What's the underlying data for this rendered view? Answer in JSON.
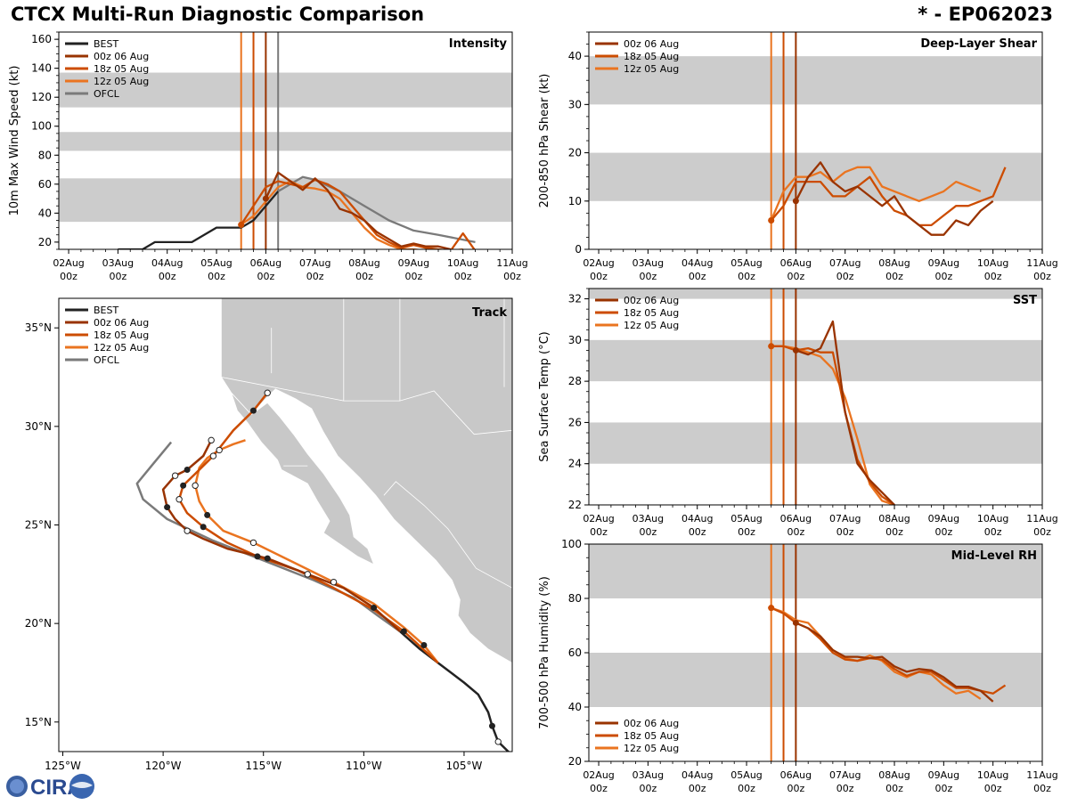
{
  "header": {
    "title": "CTCX Multi-Run Diagnostic Comparison",
    "storm_id": "* - EP062023"
  },
  "logo": {
    "text": "CIRA"
  },
  "colors": {
    "BEST": "#222222",
    "00z 06 Aug": "#993300",
    "18z 05 Aug": "#cc4c00",
    "12z 05 Aug": "#ea7420",
    "OFCL": "#7a7a7a",
    "band": "#cccccc",
    "land": "#c8c8c8"
  },
  "time_ticks": [
    "02Aug",
    "03Aug",
    "04Aug",
    "05Aug",
    "06Aug",
    "07Aug",
    "08Aug",
    "09Aug",
    "10Aug",
    "11Aug"
  ],
  "time_tick_sub": "00z",
  "chart_data": [
    {
      "id": "intensity",
      "type": "line",
      "title": "Intensity",
      "ylabel": "10m Max Wind Speed (kt)",
      "ylim": [
        15,
        165
      ],
      "xlim": [
        1.8,
        11.0
      ],
      "yticks": [
        20,
        40,
        60,
        80,
        100,
        120,
        140,
        160
      ],
      "bands": [
        [
          34,
          64
        ],
        [
          83,
          96
        ],
        [
          113,
          137
        ]
      ],
      "legend": [
        "BEST",
        "00z 06 Aug",
        "18z 05 Aug",
        "12z 05 Aug",
        "OFCL"
      ],
      "vlines": [
        {
          "series": "12z 05 Aug",
          "x": 5.5
        },
        {
          "series": "18z 05 Aug",
          "x": 5.75
        },
        {
          "series": "00z 06 Aug",
          "x": 6.0
        },
        {
          "series": "OFCL",
          "x": 6.25
        }
      ],
      "series": [
        {
          "name": "BEST",
          "x": [
            3.0,
            3.5,
            3.75,
            4.5,
            5.0,
            5.5,
            5.75,
            6.0,
            6.25
          ],
          "y": [
            15,
            15,
            20,
            20,
            30,
            30,
            35,
            45,
            55
          ]
        },
        {
          "name": "OFCL",
          "x": [
            6.25,
            6.5,
            6.75,
            7.0,
            7.5,
            8.0,
            8.5,
            9.0,
            9.5,
            10.25
          ],
          "y": [
            55,
            60,
            65,
            63,
            55,
            45,
            35,
            28,
            25,
            20
          ]
        },
        {
          "name": "12z 05 Aug",
          "x": [
            5.5,
            5.75,
            6.0,
            6.25,
            6.5,
            6.75,
            7.0,
            7.25,
            7.5,
            7.75,
            8.0,
            8.25,
            8.5,
            8.75,
            9.0,
            9.25,
            9.5,
            9.75,
            10.0
          ],
          "y": [
            32,
            38,
            48,
            58,
            62,
            58,
            57,
            55,
            50,
            40,
            30,
            22,
            18,
            15,
            15,
            14,
            14,
            14,
            15
          ]
        },
        {
          "name": "18z 05 Aug",
          "x": [
            5.5,
            5.75,
            6.0,
            6.25,
            6.5,
            6.75,
            7.0,
            7.25,
            7.5,
            7.75,
            8.0,
            8.25,
            8.5,
            8.75,
            9.0,
            9.25,
            9.5,
            9.75,
            10.0,
            10.25
          ],
          "y": [
            32,
            45,
            58,
            62,
            60,
            58,
            63,
            60,
            55,
            45,
            35,
            25,
            20,
            16,
            18,
            16,
            15,
            14,
            26,
            14
          ]
        },
        {
          "name": "00z 06 Aug",
          "x": [
            6.0,
            6.25,
            6.5,
            6.75,
            7.0,
            7.25,
            7.5,
            7.75,
            8.0,
            8.25,
            8.5,
            8.75,
            9.0,
            9.25,
            9.5,
            9.75
          ],
          "y": [
            50,
            68,
            62,
            56,
            64,
            56,
            43,
            40,
            35,
            27,
            22,
            17,
            19,
            17,
            17,
            15
          ]
        }
      ]
    },
    {
      "id": "shear",
      "type": "line",
      "title": "Deep-Layer Shear",
      "ylabel": "200-850 hPa Shear (kt)",
      "ylim": [
        0,
        45
      ],
      "xlim": [
        1.8,
        11.0
      ],
      "yticks": [
        0,
        10,
        20,
        30,
        40
      ],
      "bands": [
        [
          10,
          20
        ],
        [
          30,
          40
        ]
      ],
      "legend": [
        "00z 06 Aug",
        "18z 05 Aug",
        "12z 05 Aug"
      ],
      "vlines": [
        {
          "series": "12z 05 Aug",
          "x": 5.5
        },
        {
          "series": "18z 05 Aug",
          "x": 5.75
        },
        {
          "series": "00z 06 Aug",
          "x": 6.0
        }
      ],
      "series": [
        {
          "name": "12z 05 Aug",
          "x": [
            5.5,
            5.75,
            6.0,
            6.25,
            6.5,
            6.75,
            7.0,
            7.25,
            7.5,
            7.75,
            8.0,
            8.25,
            8.5,
            8.75,
            9.0,
            9.25,
            9.5,
            9.75
          ],
          "y": [
            6,
            12,
            15,
            15,
            16,
            14,
            16,
            17,
            17,
            13,
            12,
            11,
            10,
            11,
            12,
            14,
            13,
            12
          ]
        },
        {
          "name": "18z 05 Aug",
          "x": [
            5.5,
            5.75,
            6.0,
            6.25,
            6.5,
            6.75,
            7.0,
            7.25,
            7.5,
            7.75,
            8.0,
            8.25,
            8.5,
            8.75,
            9.0,
            9.25,
            9.5,
            9.75,
            10.0,
            10.25
          ],
          "y": [
            6,
            9,
            14,
            14,
            14,
            11,
            11,
            13,
            15,
            11,
            8,
            7,
            5,
            5,
            7,
            9,
            9,
            10,
            11,
            17
          ]
        },
        {
          "name": "00z 06 Aug",
          "x": [
            6.0,
            6.25,
            6.5,
            6.75,
            7.0,
            7.25,
            7.5,
            7.75,
            8.0,
            8.25,
            8.5,
            8.75,
            9.0,
            9.25,
            9.5,
            9.75,
            10.0
          ],
          "y": [
            10,
            15,
            18,
            14,
            12,
            13,
            11,
            9,
            11,
            7,
            5,
            3,
            3,
            6,
            5,
            8,
            10
          ]
        }
      ]
    },
    {
      "id": "sst",
      "type": "line",
      "title": "SST",
      "ylabel": "Sea Surface Temp (°C)",
      "ylim": [
        22,
        32.5
      ],
      "xlim": [
        1.8,
        11.0
      ],
      "yticks": [
        22,
        24,
        26,
        28,
        30,
        32
      ],
      "bands": [
        [
          24,
          26
        ],
        [
          28,
          30
        ],
        [
          32,
          33
        ]
      ],
      "legend": [
        "00z 06 Aug",
        "18z 05 Aug",
        "12z 05 Aug"
      ],
      "vlines": [
        {
          "series": "12z 05 Aug",
          "x": 5.5
        },
        {
          "series": "18z 05 Aug",
          "x": 5.75
        },
        {
          "series": "00z 06 Aug",
          "x": 6.0
        }
      ],
      "series": [
        {
          "name": "12z 05 Aug",
          "x": [
            5.5,
            5.75,
            6.0,
            6.25,
            6.5,
            6.75,
            7.0,
            7.25,
            7.5,
            7.75,
            8.0
          ],
          "y": [
            29.7,
            29.7,
            29.6,
            29.4,
            29.2,
            28.6,
            27.2,
            25.2,
            23.0,
            22.2,
            22.0
          ]
        },
        {
          "name": "18z 05 Aug",
          "x": [
            5.5,
            5.75,
            6.0,
            6.25,
            6.5,
            6.75,
            7.0,
            7.25,
            7.5,
            7.75,
            8.0
          ],
          "y": [
            29.7,
            29.7,
            29.5,
            29.6,
            29.4,
            29.4,
            26.5,
            24.2,
            23.1,
            22.4,
            22.0
          ]
        },
        {
          "name": "00z 06 Aug",
          "x": [
            6.0,
            6.25,
            6.5,
            6.75,
            7.0,
            7.25,
            7.5,
            7.75,
            8.0
          ],
          "y": [
            29.5,
            29.3,
            29.6,
            30.9,
            26.5,
            24.0,
            23.2,
            22.6,
            22.0
          ]
        }
      ]
    },
    {
      "id": "rh",
      "type": "line",
      "title": "Mid-Level RH",
      "ylabel": "700-500 hPa Humidity (%)",
      "ylim": [
        20,
        100
      ],
      "xlim": [
        1.8,
        11.0
      ],
      "yticks": [
        20,
        40,
        60,
        80,
        100
      ],
      "bands": [
        [
          40,
          60
        ],
        [
          80,
          100
        ]
      ],
      "legend": [
        "00z 06 Aug",
        "18z 05 Aug",
        "12z 05 Aug"
      ],
      "vlines": [
        {
          "series": "12z 05 Aug",
          "x": 5.5
        },
        {
          "series": "18z 05 Aug",
          "x": 5.75
        },
        {
          "series": "00z 06 Aug",
          "x": 6.0
        }
      ],
      "series": [
        {
          "name": "12z 05 Aug",
          "x": [
            5.5,
            5.75,
            6.0,
            6.25,
            6.5,
            6.75,
            7.0,
            7.25,
            7.5,
            7.75,
            8.0,
            8.25,
            8.5,
            8.75,
            9.0,
            9.25,
            9.5,
            9.75
          ],
          "y": [
            76.5,
            75,
            72,
            71,
            66,
            61,
            58,
            57,
            59,
            57,
            53,
            51,
            53,
            52,
            48,
            45,
            46,
            43
          ]
        },
        {
          "name": "18z 05 Aug",
          "x": [
            5.5,
            5.75,
            6.0,
            6.25,
            6.5,
            6.75,
            7.0,
            7.25,
            7.5,
            7.75,
            8.0,
            8.25,
            8.5,
            8.75,
            9.0,
            9.25,
            9.5,
            9.75,
            10.0,
            10.25
          ],
          "y": [
            76.5,
            74.5,
            71,
            69,
            65,
            60,
            57.5,
            57,
            58,
            57.5,
            54,
            51.5,
            53,
            53,
            50,
            47,
            47,
            46,
            45,
            48
          ]
        },
        {
          "name": "00z 06 Aug",
          "x": [
            6.0,
            6.25,
            6.5,
            6.75,
            7.0,
            7.25,
            7.5,
            7.75,
            8.0,
            8.25,
            8.5,
            8.75,
            9.0,
            9.25,
            9.5,
            9.75,
            10.0
          ],
          "y": [
            71,
            69,
            66,
            61,
            58.5,
            58.5,
            58,
            58.5,
            55,
            53,
            54,
            53.5,
            51,
            47.5,
            47.5,
            46,
            42
          ]
        }
      ]
    },
    {
      "id": "track",
      "type": "line",
      "title": "Track",
      "xlabel_ticks": [
        "125°W",
        "120°W",
        "115°W",
        "110°W",
        "105°W"
      ],
      "ylabel_ticks": [
        "15°N",
        "20°N",
        "25°N",
        "30°N",
        "35°N"
      ],
      "lon_ticks": [
        -125,
        -120,
        -115,
        -110,
        -105
      ],
      "lat_ticks": [
        15,
        20,
        25,
        30,
        35
      ],
      "lonlim": [
        -125.2,
        -102.6
      ],
      "latlim": [
        13.5,
        36.5
      ],
      "legend": [
        "BEST",
        "00z 06 Aug",
        "18z 05 Aug",
        "12z 05 Aug",
        "OFCL"
      ],
      "series": [
        {
          "name": "BEST",
          "lon": [
            -102.6,
            -103.3,
            -103.6,
            -103.8,
            -104.3,
            -105.0,
            -106.3,
            -107.2,
            -108.2
          ],
          "lat": [
            13.3,
            14.0,
            14.8,
            15.5,
            16.4,
            17.0,
            18.0,
            18.7,
            19.6
          ],
          "filled": [
            -1,
            0,
            2
          ],
          "hollow": [
            1
          ]
        },
        {
          "name": "OFCL",
          "lon": [
            -108.2,
            -109.3,
            -110.5,
            -112.5,
            -115,
            -117.5,
            -119.8,
            -121.0,
            -121.3,
            -121.3,
            -120.5,
            -119.6
          ],
          "lat": [
            19.6,
            20.4,
            21.3,
            22.2,
            23.2,
            24.2,
            25.3,
            26.3,
            27.1,
            27.1,
            28.1,
            29.2
          ],
          "filled": [],
          "hollow": []
        },
        {
          "name": "12z 05 Aug",
          "lon": [
            -106.3,
            -107.0,
            -108.0,
            -109.5,
            -111.5,
            -113.5,
            -115.5,
            -117.0,
            -117.8,
            -118.2,
            -118.4,
            -118.2,
            -117.8,
            -117.2,
            -116.5,
            -115.9
          ],
          "lat": [
            18.0,
            18.9,
            19.8,
            21.0,
            22.1,
            23.1,
            24.1,
            24.7,
            25.5,
            26.2,
            27.0,
            27.9,
            28.4,
            28.8,
            29.1,
            29.3
          ],
          "filled": [
            1,
            8
          ],
          "hollow": [
            4,
            6,
            10,
            13
          ]
        },
        {
          "name": "18z 05 Aug",
          "lon": [
            -106.3,
            -108.0,
            -109.5,
            -111.5,
            -113.3,
            -115.3,
            -116.8,
            -118.0,
            -118.8,
            -119.2,
            -119.0,
            -118.4,
            -117.5,
            -116.5,
            -115.5,
            -114.8
          ],
          "lat": [
            18.0,
            19.6,
            20.7,
            21.8,
            22.7,
            23.4,
            24.1,
            24.9,
            25.6,
            26.3,
            27.0,
            27.6,
            28.5,
            29.8,
            30.8,
            31.7
          ],
          "filled": [
            1,
            5,
            7,
            10,
            14
          ],
          "hollow": [
            9,
            12,
            15
          ]
        },
        {
          "name": "00z 06 Aug",
          "lon": [
            -108.2,
            -109.5,
            -111.0,
            -112.8,
            -114.8,
            -116.8,
            -118.0,
            -118.8,
            -119.4,
            -119.8,
            -120.0,
            -119.4,
            -118.8,
            -118.0,
            -117.6
          ],
          "lat": [
            19.6,
            20.8,
            21.8,
            22.5,
            23.3,
            23.8,
            24.3,
            24.7,
            25.3,
            25.9,
            26.8,
            27.5,
            27.8,
            28.5,
            29.3
          ],
          "filled": [
            1,
            4,
            9,
            12
          ],
          "hollow": [
            3,
            7,
            11,
            14
          ]
        }
      ]
    }
  ]
}
